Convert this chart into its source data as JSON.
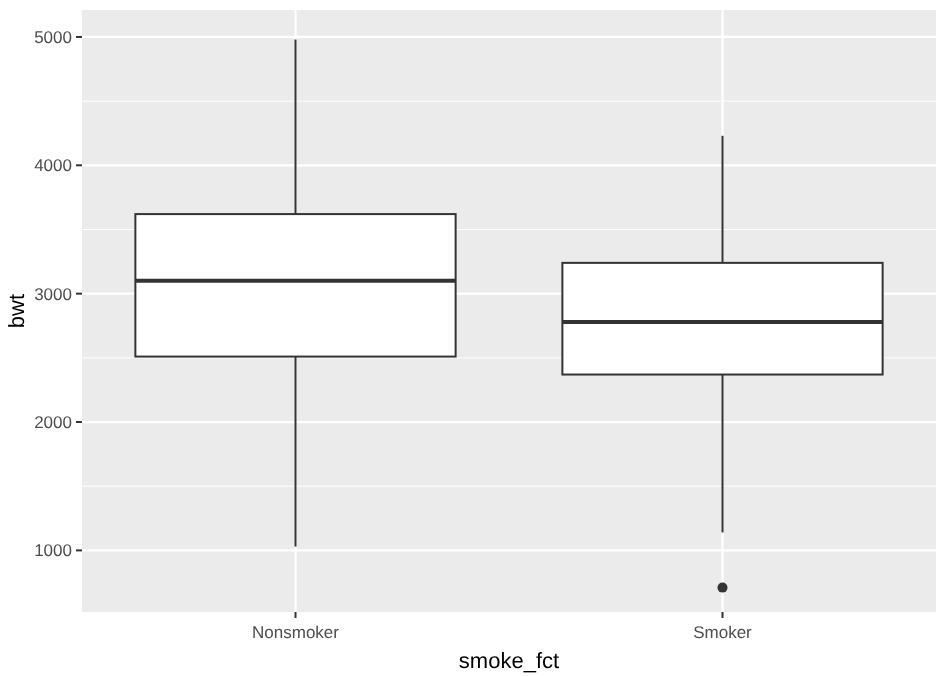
{
  "chart_data": {
    "type": "box",
    "xlabel": "smoke_fct",
    "ylabel": "bwt",
    "categories": [
      "Nonsmoker",
      "Smoker"
    ],
    "boxes": [
      {
        "low": 1030,
        "q1": 2510,
        "median": 3100,
        "q3": 3620,
        "high": 4980
      },
      {
        "low": 1140,
        "q1": 2370,
        "median": 2780,
        "q3": 3240,
        "high": 4230,
        "outliers": [
          710
        ]
      }
    ],
    "ylim": [
      520,
      5210
    ],
    "yticks": [
      1000,
      2000,
      3000,
      4000,
      5000
    ],
    "grid": true
  }
}
